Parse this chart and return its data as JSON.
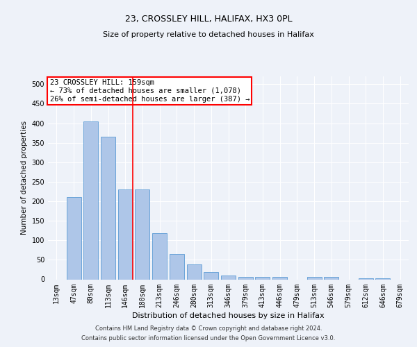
{
  "title1": "23, CROSSLEY HILL, HALIFAX, HX3 0PL",
  "title2": "Size of property relative to detached houses in Halifax",
  "xlabel": "Distribution of detached houses by size in Halifax",
  "ylabel": "Number of detached properties",
  "categories": [
    "13sqm",
    "47sqm",
    "80sqm",
    "113sqm",
    "146sqm",
    "180sqm",
    "213sqm",
    "246sqm",
    "280sqm",
    "313sqm",
    "346sqm",
    "379sqm",
    "413sqm",
    "446sqm",
    "479sqm",
    "513sqm",
    "546sqm",
    "579sqm",
    "612sqm",
    "646sqm",
    "679sqm"
  ],
  "values": [
    0,
    210,
    405,
    365,
    230,
    230,
    118,
    65,
    38,
    18,
    10,
    6,
    6,
    6,
    0,
    6,
    6,
    0,
    2,
    2,
    0
  ],
  "bar_color": "#aec6e8",
  "bar_edge_color": "#5b9bd5",
  "red_line_x": 4.42,
  "annotation_title": "23 CROSSLEY HILL: 159sqm",
  "annotation_line1": "← 73% of detached houses are smaller (1,078)",
  "annotation_line2": "26% of semi-detached houses are larger (387) →",
  "annotation_box_color": "white",
  "annotation_box_edge": "red",
  "ylim": [
    0,
    520
  ],
  "yticks": [
    0,
    50,
    100,
    150,
    200,
    250,
    300,
    350,
    400,
    450,
    500
  ],
  "footer1": "Contains HM Land Registry data © Crown copyright and database right 2024.",
  "footer2": "Contains public sector information licensed under the Open Government Licence v3.0.",
  "background_color": "#eef2f9",
  "plot_bg_color": "#eef2f9",
  "title1_fontsize": 9,
  "title2_fontsize": 8,
  "ylabel_fontsize": 7.5,
  "xlabel_fontsize": 8,
  "tick_fontsize": 7,
  "footer_fontsize": 6
}
